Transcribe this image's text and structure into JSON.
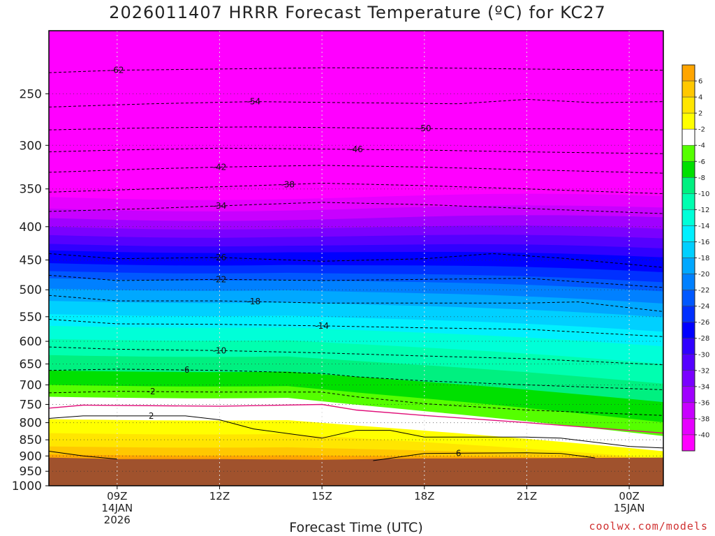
{
  "chart_data": {
    "type": "heatmap",
    "title": "2026011407 HRRR Forecast Temperature (ºC) for KC27",
    "xlabel": "Forecast Time (UTC)",
    "ylabel": "",
    "x_range_hours": [
      7,
      25
    ],
    "y_scale": "log-pressure",
    "y_range_hpa": [
      1000,
      200
    ],
    "y_ticks": [
      250,
      300,
      350,
      400,
      450,
      500,
      550,
      600,
      650,
      700,
      750,
      800,
      850,
      900,
      950,
      1000
    ],
    "x_ticks": [
      {
        "hour": 9,
        "lines": [
          "09Z",
          "14JAN",
          "2026"
        ]
      },
      {
        "hour": 12,
        "lines": [
          "12Z"
        ]
      },
      {
        "hour": 15,
        "lines": [
          "15Z"
        ]
      },
      {
        "hour": 18,
        "lines": [
          "18Z"
        ]
      },
      {
        "hour": 21,
        "lines": [
          "21Z"
        ]
      },
      {
        "hour": 24,
        "lines": [
          "00Z",
          "15JAN"
        ]
      }
    ],
    "grid": true,
    "legend_placement": "right",
    "colorbar": {
      "labels": [
        "6",
        "4",
        "2",
        "-2",
        "-4",
        "-6",
        "-8",
        "-10",
        "-12",
        "-14",
        "-16",
        "-18",
        "-20",
        "-22",
        "-24",
        "-26",
        "-28",
        "-30",
        "-32",
        "-34",
        "-36",
        "-38",
        "-40"
      ],
      "colors": [
        "#ffa500",
        "#ffc800",
        "#ffe600",
        "#ffff00",
        "#ffffff",
        "#55ff00",
        "#00e000",
        "#00f080",
        "#00ffb0",
        "#00ffd8",
        "#00f0ff",
        "#00d0ff",
        "#00a8ff",
        "#0080ff",
        "#0058ff",
        "#0030ff",
        "#0000ff",
        "#3000ff",
        "#5500ff",
        "#7a00ff",
        "#a000ff",
        "#c800ff",
        "#e600ff",
        "#ff00ff"
      ]
    },
    "surface_color": "#a0522d",
    "contours": [
      {
        "label": "-62",
        "pts": [
          [
            7,
            232
          ],
          [
            9,
            230
          ],
          [
            12,
            229
          ],
          [
            15,
            228
          ],
          [
            18,
            228
          ],
          [
            21,
            229
          ],
          [
            25,
            230
          ]
        ],
        "label_at": 9
      },
      {
        "label": "-54",
        "pts": [
          [
            7,
            262
          ],
          [
            10,
            259
          ],
          [
            13,
            257
          ],
          [
            16,
            258
          ],
          [
            19,
            259
          ],
          [
            21,
            255
          ],
          [
            23,
            258
          ],
          [
            25,
            257
          ]
        ],
        "label_at": 13
      },
      {
        "label": "-50",
        "pts": [
          [
            7,
            284
          ],
          [
            10,
            282
          ],
          [
            13,
            281
          ],
          [
            16,
            282
          ],
          [
            19,
            283
          ],
          [
            22,
            283
          ],
          [
            25,
            284
          ]
        ],
        "label_at": 18
      },
      {
        "label": "-46",
        "pts": [
          [
            7,
            307
          ],
          [
            9,
            305
          ],
          [
            12,
            303
          ],
          [
            15,
            304
          ],
          [
            18,
            305
          ],
          [
            21,
            307
          ],
          [
            25,
            309
          ]
        ],
        "label_at": 16
      },
      {
        "label": "-42",
        "pts": [
          [
            7,
            330
          ],
          [
            10,
            326
          ],
          [
            12,
            324
          ],
          [
            15,
            322
          ],
          [
            18,
            324
          ],
          [
            21,
            327
          ],
          [
            25,
            331
          ]
        ],
        "label_at": 12
      },
      {
        "label": "-38",
        "pts": [
          [
            7,
            354
          ],
          [
            10,
            350
          ],
          [
            13,
            346
          ],
          [
            15,
            343
          ],
          [
            18,
            346
          ],
          [
            21,
            350
          ],
          [
            25,
            356
          ]
        ],
        "label_at": 14
      },
      {
        "label": "-34",
        "pts": [
          [
            7,
            379
          ],
          [
            10,
            375
          ],
          [
            13,
            370
          ],
          [
            15,
            367
          ],
          [
            18,
            370
          ],
          [
            21,
            375
          ],
          [
            25,
            382
          ]
        ],
        "label_at": 12
      },
      {
        "label": "-26",
        "pts": [
          [
            7,
            440
          ],
          [
            9,
            448
          ],
          [
            12,
            446
          ],
          [
            15,
            452
          ],
          [
            18,
            448
          ],
          [
            20,
            440
          ],
          [
            22,
            447
          ],
          [
            25,
            462
          ]
        ],
        "label_at": 12
      },
      {
        "label": "-22",
        "pts": [
          [
            7,
            475
          ],
          [
            9,
            484
          ],
          [
            12,
            482
          ],
          [
            15,
            484
          ],
          [
            18,
            482
          ],
          [
            21,
            480
          ],
          [
            25,
            496
          ]
        ],
        "label_at": 12
      },
      {
        "label": "-18",
        "pts": [
          [
            7,
            510
          ],
          [
            9,
            520
          ],
          [
            12,
            520
          ],
          [
            15,
            524
          ],
          [
            18,
            524
          ],
          [
            21,
            524
          ],
          [
            22.5,
            522
          ],
          [
            25,
            540
          ]
        ],
        "label_at": 13
      },
      {
        "label": "-14",
        "pts": [
          [
            7,
            555
          ],
          [
            9,
            564
          ],
          [
            12,
            565
          ],
          [
            15,
            568
          ],
          [
            18,
            572
          ],
          [
            21,
            575
          ],
          [
            25,
            590
          ]
        ],
        "label_at": 15
      },
      {
        "label": "-10",
        "pts": [
          [
            7,
            612
          ],
          [
            9,
            617
          ],
          [
            12,
            620
          ],
          [
            15,
            625
          ],
          [
            18,
            632
          ],
          [
            21,
            638
          ],
          [
            25,
            652
          ]
        ],
        "label_at": 12
      },
      {
        "label": "-6",
        "pts": [
          [
            7,
            665
          ],
          [
            9,
            662
          ],
          [
            12,
            665
          ],
          [
            15,
            672
          ],
          [
            16,
            680
          ],
          [
            18,
            690
          ],
          [
            21,
            700
          ],
          [
            25,
            712
          ]
        ],
        "label_at": 11
      },
      {
        "label": "-2",
        "pts": [
          [
            7,
            720
          ],
          [
            9,
            716
          ],
          [
            12,
            718
          ],
          [
            15,
            718
          ],
          [
            16,
            730
          ],
          [
            18,
            748
          ],
          [
            21,
            765
          ],
          [
            25,
            780
          ]
        ],
        "label_at": 10
      },
      {
        "label": "2",
        "pts": [
          [
            7,
            788
          ],
          [
            8,
            781
          ],
          [
            11,
            781
          ],
          [
            12,
            792
          ],
          [
            13,
            818
          ],
          [
            15,
            845
          ],
          [
            16,
            822
          ],
          [
            17,
            822
          ],
          [
            18,
            842
          ],
          [
            21,
            842
          ],
          [
            22,
            845
          ],
          [
            24,
            870
          ],
          [
            25,
            875
          ]
        ],
        "label_at": 10
      },
      {
        "label": "6",
        "pts": [
          [
            7,
            885
          ],
          [
            8,
            900
          ],
          [
            9,
            910
          ]
        ],
        "label_at": null
      },
      {
        "label": "6",
        "pts": [
          [
            16.5,
            915
          ],
          [
            18,
            892
          ],
          [
            21,
            890
          ],
          [
            22,
            892
          ],
          [
            23,
            906
          ]
        ],
        "label_at": 19
      }
    ],
    "freezing_line": {
      "pts": [
        [
          7,
          760
        ],
        [
          8,
          752
        ],
        [
          12,
          755
        ],
        [
          15,
          750
        ],
        [
          16,
          765
        ],
        [
          18,
          780
        ],
        [
          21,
          800
        ],
        [
          25,
          830
        ]
      ]
    },
    "surface_pressure": [
      [
        7,
        905
      ],
      [
        9,
        910
      ],
      [
        12,
        910
      ],
      [
        15,
        912
      ],
      [
        18,
        908
      ],
      [
        21,
        907
      ],
      [
        25,
        905
      ]
    ]
  },
  "credit": "coolwx.com/models"
}
